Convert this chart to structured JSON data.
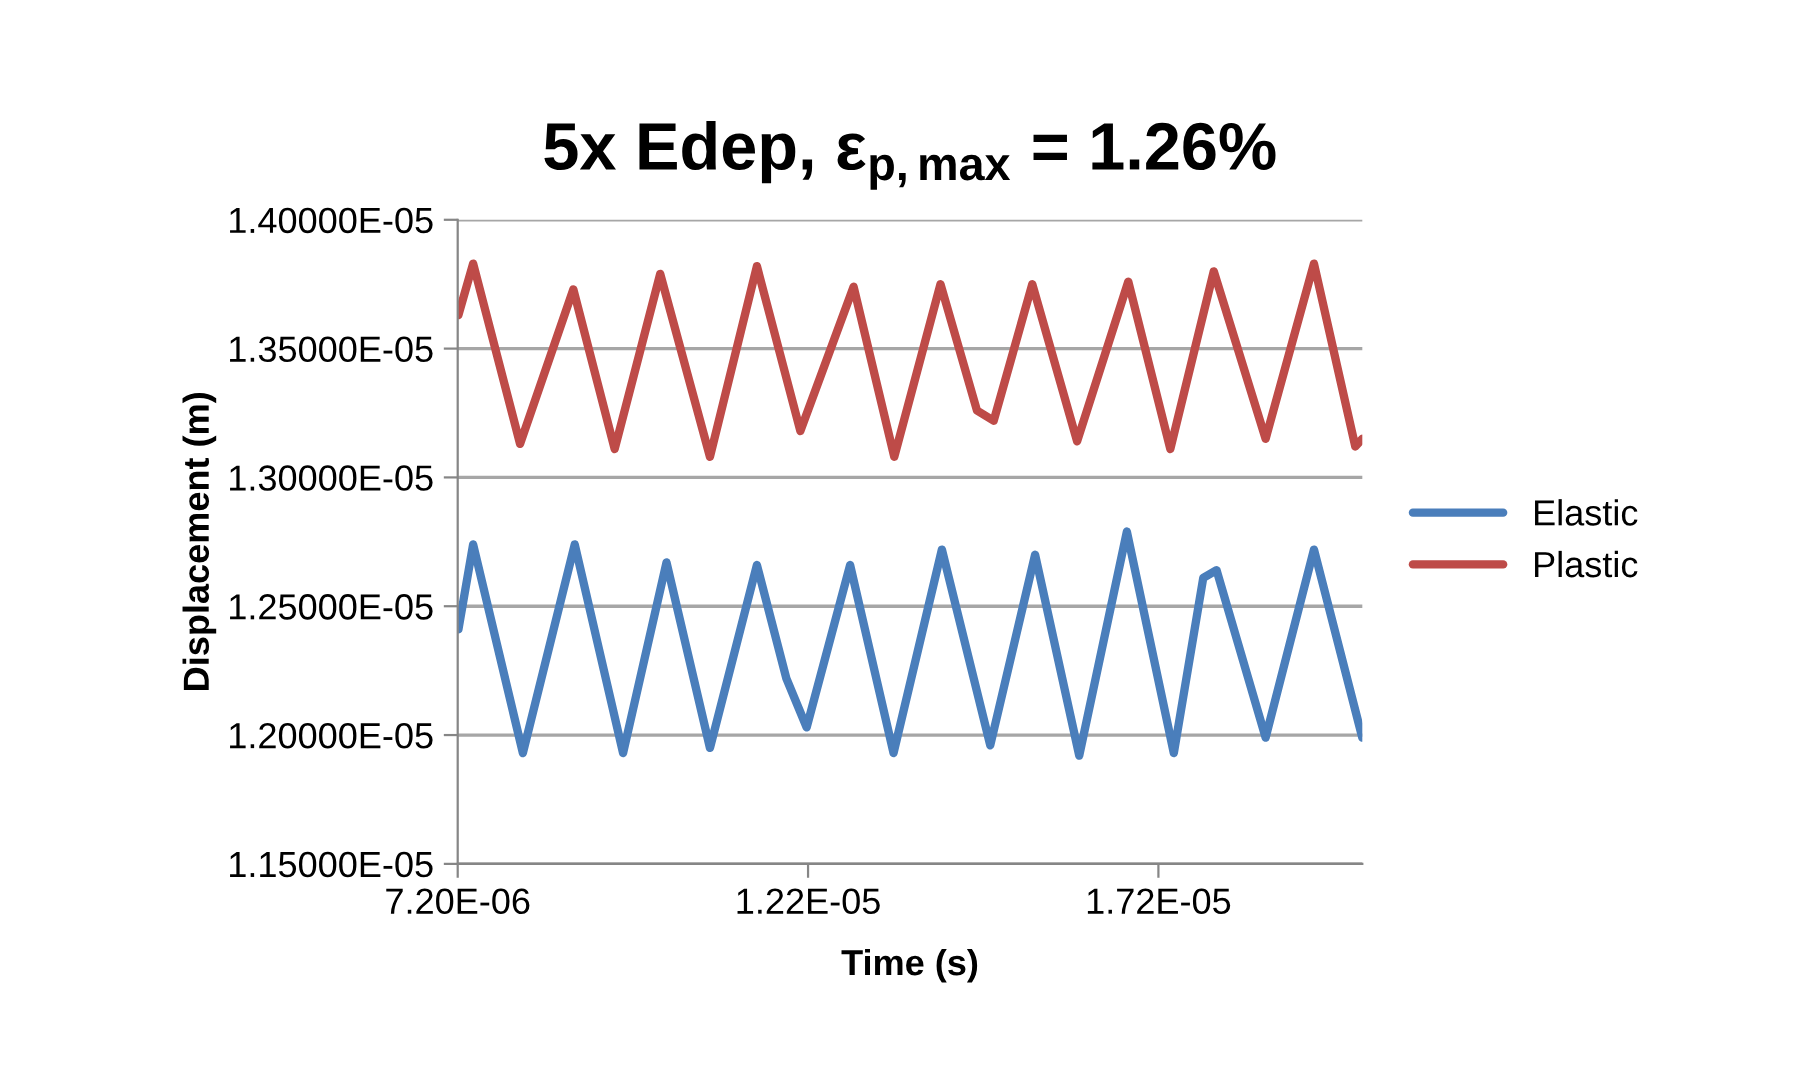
{
  "chart_data": {
    "type": "line",
    "title": "5x Edep, ε$_{p,max}$ = 1.26%",
    "xlabel": "Time (s)",
    "ylabel": "Displacement (m)",
    "xlim": [
      7.2e-06,
      2.011e-05
    ],
    "ylim": [
      1.15e-05,
      1.4e-05
    ],
    "xticks": [
      {
        "value": 7.2e-06,
        "label": "7.20E-06"
      },
      {
        "value": 1.22e-05,
        "label": "1.22E-05"
      },
      {
        "value": 1.72e-05,
        "label": "1.72E-05"
      }
    ],
    "yticks": [
      {
        "value": 1.15e-05,
        "label": "1.15000E-05"
      },
      {
        "value": 1.2e-05,
        "label": "1.20000E-05"
      },
      {
        "value": 1.25e-05,
        "label": "1.25000E-05"
      },
      {
        "value": 1.3e-05,
        "label": "1.30000E-05"
      },
      {
        "value": 1.35e-05,
        "label": "1.35000E-05"
      },
      {
        "value": 1.4e-05,
        "label": "1.40000E-05"
      }
    ],
    "grid": "y",
    "legend": "right",
    "marker": "none",
    "line_style": "solid",
    "series": [
      {
        "name": "Elastic",
        "color": "#4a7ebb",
        "x": [
          7.21e-06,
          7.42e-06,
          8.13e-06,
          8.87e-06,
          9.56e-06,
          1.018e-05,
          1.08e-05,
          1.147e-05,
          1.189e-05,
          1.218e-05,
          1.28e-05,
          1.342e-05,
          1.411e-05,
          1.48e-05,
          1.544e-05,
          1.607e-05,
          1.675e-05,
          1.742e-05,
          1.784e-05,
          1.803e-05,
          1.873e-05,
          1.942e-05,
          2.011e-05
        ],
        "values": [
          1.241e-05,
          1.274e-05,
          1.193e-05,
          1.274e-05,
          1.193e-05,
          1.267e-05,
          1.195e-05,
          1.266e-05,
          1.222e-05,
          1.203e-05,
          1.266e-05,
          1.193e-05,
          1.272e-05,
          1.196e-05,
          1.27e-05,
          1.192e-05,
          1.279e-05,
          1.193e-05,
          1.261e-05,
          1.264e-05,
          1.199e-05,
          1.272e-05,
          1.199e-05
        ]
      },
      {
        "name": "Plastic",
        "color": "#be4b48",
        "x": [
          7.21e-06,
          7.42e-06,
          8.09e-06,
          8.85e-06,
          9.44e-06,
          1.009e-05,
          1.08e-05,
          1.147e-05,
          1.209e-05,
          1.285e-05,
          1.343e-05,
          1.409e-05,
          1.461e-05,
          1.485e-05,
          1.54e-05,
          1.604e-05,
          1.677e-05,
          1.737e-05,
          1.799e-05,
          1.873e-05,
          1.942e-05,
          2.001e-05,
          2.011e-05
        ],
        "values": [
          1.363e-05,
          1.383e-05,
          1.313e-05,
          1.373e-05,
          1.311e-05,
          1.379e-05,
          1.308e-05,
          1.382e-05,
          1.318e-05,
          1.374e-05,
          1.308e-05,
          1.375e-05,
          1.326e-05,
          1.322e-05,
          1.375e-05,
          1.314e-05,
          1.376e-05,
          1.311e-05,
          1.38e-05,
          1.315e-05,
          1.383e-05,
          1.312e-05,
          1.315e-05
        ]
      }
    ]
  }
}
